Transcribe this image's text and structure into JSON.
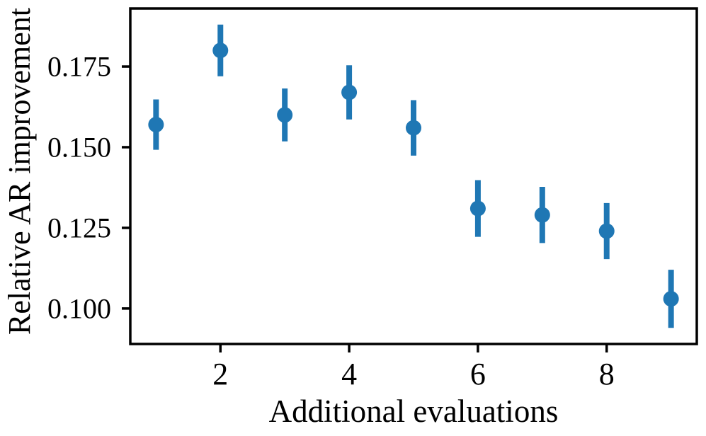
{
  "figure": {
    "background": "#ffffff"
  },
  "chart_data": {
    "type": "scatter",
    "subtype": "errorbar-points",
    "title": "",
    "xlabel": "Additional evaluations",
    "ylabel": "Relative AR improvement",
    "x": [
      1,
      2,
      3,
      4,
      5,
      6,
      7,
      8,
      9
    ],
    "values": [
      0.157,
      0.18,
      0.16,
      0.167,
      0.156,
      0.131,
      0.129,
      0.124,
      0.103
    ],
    "errors": [
      0.0078,
      0.008,
      0.0082,
      0.0084,
      0.0086,
      0.0088,
      0.0087,
      0.0087,
      0.009
    ],
    "x_ticks": [
      2,
      4,
      6,
      8
    ],
    "x_tick_labels": [
      "2",
      "4",
      "6",
      "8"
    ],
    "y_ticks": [
      0.1,
      0.125,
      0.15,
      0.175
    ],
    "y_tick_labels": [
      "0.100",
      "0.125",
      "0.150",
      "0.175"
    ],
    "xlim": [
      0.6,
      9.4
    ],
    "ylim": [
      0.089,
      0.193
    ],
    "grid": false,
    "legend": null,
    "point_color": "#1f77b4",
    "axis_color": "#000000"
  }
}
